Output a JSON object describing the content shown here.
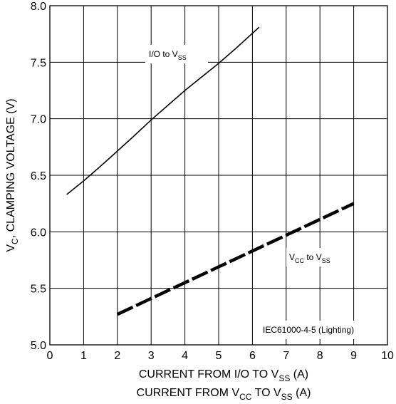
{
  "chart_data": {
    "type": "line",
    "title": "",
    "xlabel_line1": {
      "main": "CURRENT FROM I/O TO V",
      "sub": "SS",
      "unit": " (A)"
    },
    "xlabel_line2": {
      "main": "CURRENT FROM V",
      "sub1": "CC",
      "mid": " TO V",
      "sub2": "SS",
      "unit": " (A)"
    },
    "ylabel": {
      "main": "V",
      "sub": "C",
      "rest": ", CLAMPING VOLTAGE (V)"
    },
    "xlim": [
      0,
      10
    ],
    "ylim": [
      5.0,
      8.0
    ],
    "x_ticks": [
      0,
      1,
      2,
      3,
      4,
      5,
      6,
      7,
      8,
      9,
      10
    ],
    "x_tick_labels": [
      "0",
      "1",
      "2",
      "3",
      "4",
      "5",
      "6",
      "7",
      "8",
      "9",
      "10"
    ],
    "y_ticks": [
      5.0,
      5.5,
      6.0,
      6.5,
      7.0,
      7.5,
      8.0
    ],
    "y_tick_labels": [
      "5.0",
      "5.5",
      "6.0",
      "6.5",
      "7.0",
      "7.5",
      "8.0"
    ],
    "grid": true,
    "series": [
      {
        "name": {
          "main": "I/O to V",
          "sub": "SS"
        },
        "style": "solid-thin",
        "color": "#000000",
        "x": [
          0.5,
          1.0,
          1.5,
          1.8,
          2.5,
          3.0,
          4.0,
          5.0,
          5.5,
          6.2
        ],
        "y": [
          6.33,
          6.45,
          6.58,
          6.66,
          6.85,
          6.99,
          7.25,
          7.49,
          7.62,
          7.81
        ]
      },
      {
        "name": {
          "main": "V",
          "sub1": "CC",
          "mid": " to V",
          "sub2": "SS"
        },
        "style": "dashed-thick",
        "color": "#000000",
        "x": [
          2.0,
          3.0,
          4.0,
          5.0,
          6.0,
          7.0,
          8.0,
          9.0
        ],
        "y": [
          5.27,
          5.41,
          5.55,
          5.69,
          5.83,
          5.97,
          6.11,
          6.25
        ]
      }
    ],
    "annotation": "IEC61000-4-5 (Lighting)"
  }
}
